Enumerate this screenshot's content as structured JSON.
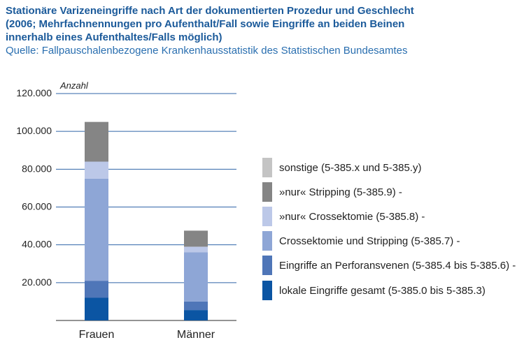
{
  "header": {
    "title_lines": [
      "Stationäre Varizeneingriffe nach Art der dokumentierten Prozedur und Geschlecht",
      "(2006; Mehrfachnennungen pro Aufenthalt/Fall sowie Eingriffe an beiden Beinen",
      "innerhalb eines Aufenthaltes/Falls möglich)"
    ],
    "source": "Quelle: Fallpauschalenbezogene Krankenhausstatistik des Statistischen Bundesamtes"
  },
  "chart_data": {
    "type": "bar",
    "stacked": true,
    "title": "Stationäre Varizeneingriffe nach Art der dokumentierten Prozedur und Geschlecht (2006; Mehrfachnennungen pro Aufenthalt/Fall sowie Eingriffe an beiden Beinen innerhalb eines Aufenthaltes/Falls möglich)",
    "ylabel": "Anzahl",
    "ylim": [
      0,
      120000
    ],
    "yticks": [
      0,
      20000,
      40000,
      60000,
      80000,
      100000,
      120000
    ],
    "ytick_labels": [
      "",
      "20.000",
      "40.000",
      "60.000",
      "80.000",
      "100.000",
      "120.000"
    ],
    "grid": true,
    "legend_position": "right",
    "categories": [
      "Frauen",
      "Männer"
    ],
    "series": [
      {
        "name": "lokale Eingriffe gesamt (5-385.0 bis 5-385.3)",
        "values": [
          12000,
          5500
        ],
        "color": "#0b55a3"
      },
      {
        "name": "Eingriffe an Perforansvenen (5-385.4 bis 5-385.6) -",
        "values": [
          9000,
          4500
        ],
        "color": "#4f76b8"
      },
      {
        "name": "Crossektomie und Stripping (5-385.7) -",
        "values": [
          54000,
          26000
        ],
        "color": "#8ea6d6"
      },
      {
        "name": "»nur« Crossektomie (5-385.8) -",
        "values": [
          9000,
          3000
        ],
        "color": "#bcc8e8"
      },
      {
        "name": "»nur« Stripping (5-385.9) -",
        "values": [
          21000,
          8500
        ],
        "color": "#858585"
      },
      {
        "name": "sonstige (5-385.x und 5-385.y)",
        "values": [
          0,
          0
        ],
        "color": "#c4c4c4"
      }
    ]
  }
}
